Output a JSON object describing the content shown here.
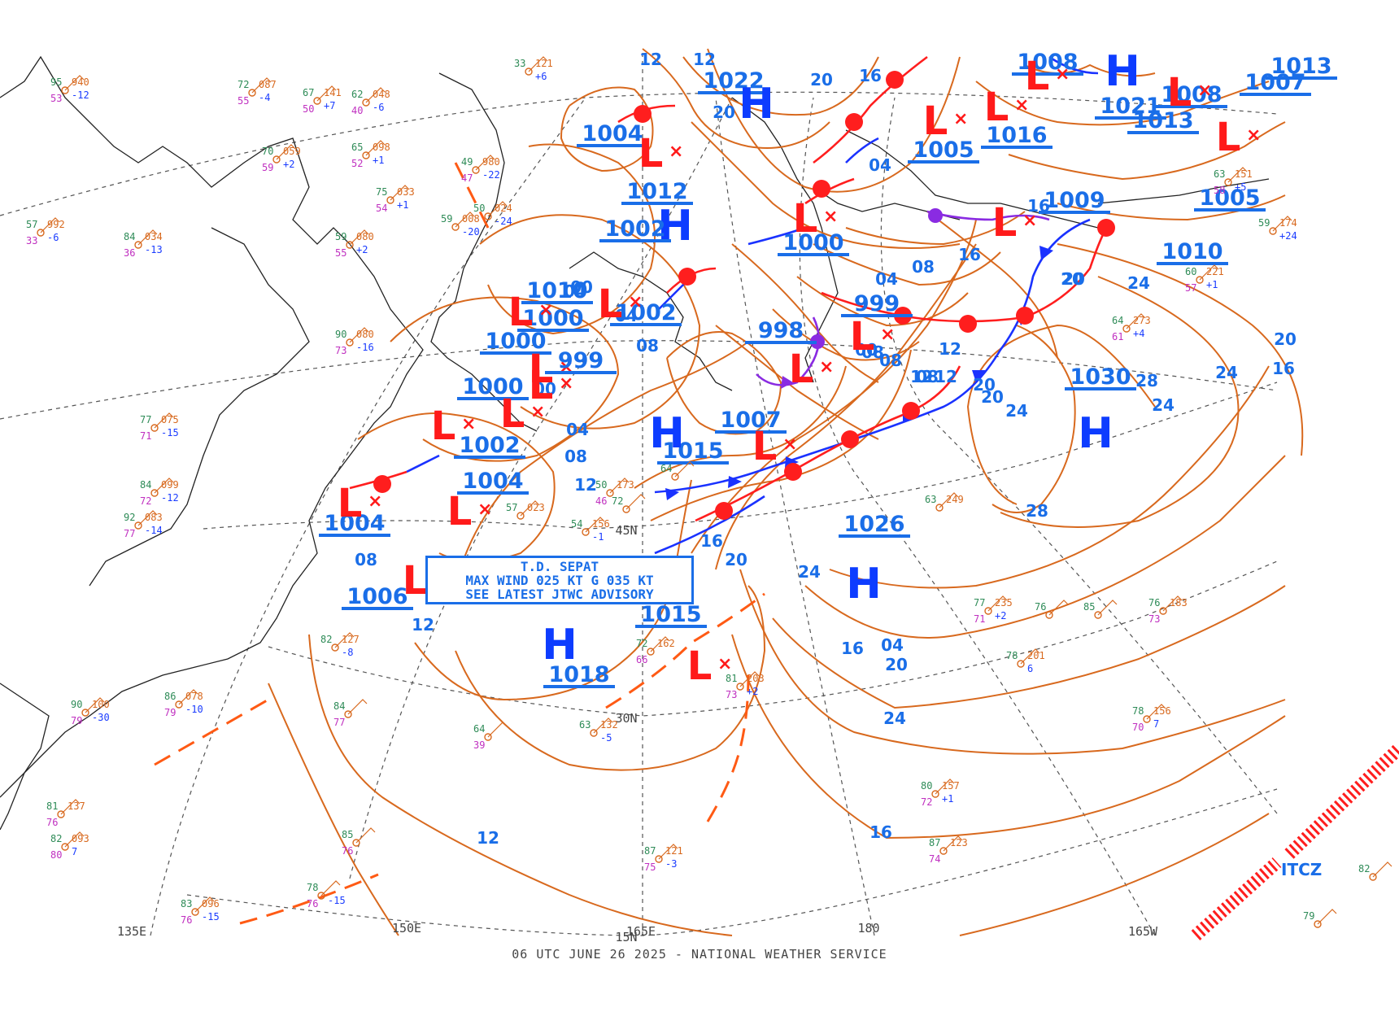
{
  "footer": "06 UTC JUNE 26 2025 - NATIONAL WEATHER SERVICE",
  "advisory": {
    "line1": "T.D. SEPAT",
    "line2": "MAX WIND 025 KT G 035 KT",
    "line3": "SEE LATEST JTWC ADVISORY"
  },
  "grid_labels": {
    "lon_135e": "135E",
    "lon_150e": "150E",
    "lon_165e": "165E",
    "lon_180": "180",
    "lon_165w": "165W",
    "lat_15n": "15N",
    "lat_30n": "30N",
    "lat_45n": "45N"
  },
  "itcz_label": "ITCZ",
  "colors": {
    "isobar": "#d8691e",
    "label_blue": "#1a6ee8",
    "high": "#0d3cff",
    "low": "#ff1a1a",
    "cold_front": "#1a32ff",
    "warm_front": "#ff1e1e",
    "occluded_front": "#8a2be2",
    "trough": "#ff5a14"
  },
  "pressure_centers": [
    {
      "id": "p1022",
      "label": "1022",
      "type": "H"
    },
    {
      "id": "p1004a",
      "label": "1004",
      "type": "L"
    },
    {
      "id": "p1012",
      "label": "1012",
      "type": "H"
    },
    {
      "id": "p1002a",
      "label": "1002"
    },
    {
      "id": "p1010a",
      "label": "1010"
    },
    {
      "id": "p1000a",
      "label": "1000",
      "type": "L"
    },
    {
      "id": "p1002b",
      "label": "1002",
      "type": "L"
    },
    {
      "id": "p1000b",
      "label": "1000",
      "type": "L"
    },
    {
      "id": "p999a",
      "label": "999",
      "type": "L"
    },
    {
      "id": "p1000c",
      "label": "1000",
      "type": "L"
    },
    {
      "id": "p1002c",
      "label": "1002",
      "type": "L"
    },
    {
      "id": "p1004b",
      "label": "1004",
      "type": "L"
    },
    {
      "id": "p1004c",
      "label": "1004",
      "type": "L"
    },
    {
      "id": "p1006",
      "label": "1006",
      "type": "L"
    },
    {
      "id": "p1015a",
      "label": "1015",
      "type": "H"
    },
    {
      "id": "p1007",
      "label": "1007",
      "type": "L"
    },
    {
      "id": "p998",
      "label": "998",
      "type": "L"
    },
    {
      "id": "p999b",
      "label": "999",
      "type": "L"
    },
    {
      "id": "p1000d",
      "label": "1000",
      "type": "L"
    },
    {
      "id": "p1005a",
      "label": "1005",
      "type": "L"
    },
    {
      "id": "p1016",
      "label": "1016",
      "type": "L"
    },
    {
      "id": "p1009",
      "label": "1009",
      "type": "L"
    },
    {
      "id": "p1008a",
      "label": "1008",
      "type": "L"
    },
    {
      "id": "p1021",
      "label": "1021",
      "type": "H"
    },
    {
      "id": "p1013a",
      "label": "1013"
    },
    {
      "id": "p1008b",
      "label": "1008",
      "type": "L"
    },
    {
      "id": "p1007b",
      "label": "1007",
      "type": "L"
    },
    {
      "id": "p1013b",
      "label": "1013"
    },
    {
      "id": "p1005b",
      "label": "1005"
    },
    {
      "id": "p1010b",
      "label": "1010"
    },
    {
      "id": "p1030",
      "label": "1030",
      "type": "H"
    },
    {
      "id": "p1026",
      "label": "1026",
      "type": "H"
    },
    {
      "id": "p1015b",
      "label": "1015",
      "type": "L"
    },
    {
      "id": "p1018",
      "label": "1018",
      "type": "H"
    }
  ],
  "isobar_labels": [
    "12",
    "12",
    "20",
    "16",
    "20",
    "04",
    "08",
    "04",
    "08",
    "12",
    "16",
    "20",
    "24",
    "28",
    "24",
    "20",
    "24",
    "28",
    "20",
    "16",
    "20",
    "24",
    "12",
    "16",
    "20",
    "24",
    "16",
    "12",
    "08",
    "04",
    "00",
    "04",
    "08",
    "12",
    "08",
    "04",
    "00",
    "08",
    "12",
    "16",
    "20",
    "24",
    "20",
    "16",
    "12",
    "00",
    "08",
    "04"
  ],
  "stations": [
    {
      "t": "95",
      "p": "940",
      "d": "53",
      "c": "-12"
    },
    {
      "t": "72",
      "p": "087",
      "d": "55",
      "c": "-4"
    },
    {
      "t": "62",
      "p": "048",
      "d": "40",
      "c": "-6"
    },
    {
      "t": "67",
      "p": "141",
      "d": "50",
      "c": "+7"
    },
    {
      "t": "65",
      "p": "098",
      "d": "52",
      "c": "+1"
    },
    {
      "t": "70",
      "p": "059",
      "d": "59",
      "c": "+2"
    },
    {
      "t": "75",
      "p": "033",
      "d": "54",
      "c": "+1"
    },
    {
      "t": "59",
      "p": "080",
      "d": "55",
      "c": "+2"
    },
    {
      "t": "57",
      "p": "992",
      "d": "33",
      "c": "-6"
    },
    {
      "t": "84",
      "p": "034",
      "d": "36",
      "c": "-13"
    },
    {
      "t": "90",
      "p": "080",
      "d": "73",
      "c": "-16"
    },
    {
      "t": "77",
      "p": "075",
      "d": "71",
      "c": "-15"
    },
    {
      "t": "84",
      "p": "099",
      "d": "72",
      "c": "-12"
    },
    {
      "t": "92",
      "p": "083",
      "d": "77",
      "c": "-14"
    },
    {
      "t": "86",
      "p": "078",
      "d": "79",
      "c": "-10"
    },
    {
      "t": "90",
      "p": "100",
      "d": "79",
      "c": "-30"
    },
    {
      "t": "81",
      "p": "137",
      "d": "76",
      "c": ""
    },
    {
      "t": "82",
      "p": "093",
      "d": "80",
      "c": "7"
    },
    {
      "t": "83",
      "p": "096",
      "d": "76",
      "c": "-15"
    },
    {
      "t": "78",
      "p": "",
      "d": "76",
      "c": "-15"
    },
    {
      "t": "64",
      "p": "",
      "d": "39",
      "c": ""
    },
    {
      "t": "63",
      "p": "132",
      "d": "",
      "c": "-5"
    },
    {
      "t": "87",
      "p": "121",
      "d": "75",
      "c": "-3"
    },
    {
      "t": "72",
      "p": "162",
      "d": "66",
      "c": ""
    },
    {
      "t": "80",
      "p": "157",
      "d": "72",
      "c": "+1"
    },
    {
      "t": "87",
      "p": "123",
      "d": "74",
      "c": ""
    },
    {
      "t": "77",
      "p": "235",
      "d": "71",
      "c": "+2"
    },
    {
      "t": "78",
      "p": "201",
      "d": "",
      "c": "6"
    },
    {
      "t": "78",
      "p": "156",
      "d": "70",
      "c": "7"
    },
    {
      "t": "76",
      "p": "183",
      "d": "73",
      "c": ""
    },
    {
      "t": "63",
      "p": "249",
      "d": "",
      "c": ""
    },
    {
      "t": "64",
      "p": "273",
      "d": "61",
      "c": "+4"
    },
    {
      "t": "60",
      "p": "221",
      "d": "57",
      "c": "+1"
    },
    {
      "t": "63",
      "p": "151",
      "d": "58",
      "c": "+5"
    },
    {
      "t": "59",
      "p": "174",
      "d": "",
      "c": "+24"
    },
    {
      "t": "81",
      "p": "203",
      "d": "73",
      "c": "+2"
    },
    {
      "t": "82",
      "p": "",
      "d": "",
      "c": ""
    },
    {
      "t": "79",
      "p": "",
      "d": "",
      "c": ""
    },
    {
      "t": "85",
      "p": "",
      "d": "76",
      "c": ""
    },
    {
      "t": "84",
      "p": "",
      "d": "77",
      "c": ""
    },
    {
      "t": "82",
      "p": "127",
      "d": "",
      "c": "-8"
    },
    {
      "t": "50",
      "p": "173",
      "d": "46",
      "c": ""
    },
    {
      "t": "54",
      "p": "156",
      "d": "",
      "c": "-1"
    },
    {
      "t": "57",
      "p": "023",
      "d": "",
      "c": ""
    },
    {
      "t": "64",
      "p": "",
      "d": "",
      "c": ""
    },
    {
      "t": "72",
      "p": "",
      "d": "",
      "c": ""
    },
    {
      "t": "76",
      "p": "",
      "d": "",
      "c": ""
    },
    {
      "t": "85",
      "p": "",
      "d": "",
      "c": ""
    },
    {
      "t": "49",
      "p": "980",
      "d": "47",
      "c": "-22"
    },
    {
      "t": "33",
      "p": "121",
      "d": "",
      "c": "+6"
    },
    {
      "t": "50",
      "p": "024",
      "d": "",
      "c": "-24"
    },
    {
      "t": "59",
      "p": "008",
      "d": "",
      "c": "-20"
    }
  ]
}
